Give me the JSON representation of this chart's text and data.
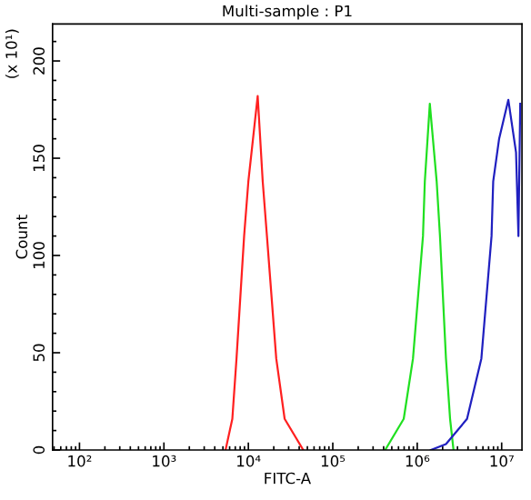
{
  "chart_data": {
    "type": "line",
    "title": "Multi-sample : P1",
    "xlabel": "FITC-A",
    "ylabel": "Count",
    "annotations": [
      "(x 10¹)"
    ],
    "log": "x",
    "grid": false,
    "marker": "none",
    "line_style": "solid",
    "xlim": [
      48,
      17400000
    ],
    "ylim": [
      0,
      219
    ],
    "xticks": [
      {
        "value": 100,
        "label": "10²"
      },
      {
        "value": 1000,
        "label": "10³"
      },
      {
        "value": 10000,
        "label": "10⁴"
      },
      {
        "value": 100000,
        "label": "10⁵"
      },
      {
        "value": 1000000,
        "label": "10⁶"
      },
      {
        "value": 10000000,
        "label": "10⁷"
      }
    ],
    "yticks": [
      0,
      50,
      100,
      150,
      200
    ],
    "series": [
      {
        "color": "#ff2020",
        "x": [
          5370,
          6460,
          7240,
          8910,
          10000,
          12900,
          14800,
          16600,
          21400,
          26900,
          44700
        ],
        "values": [
          0,
          16,
          47,
          110,
          138,
          182,
          138,
          110,
          47,
          16,
          0
        ]
      },
      {
        "color": "#20e020",
        "x": [
          417000,
          692000,
          891000,
          1170000,
          1230000,
          1410000,
          1700000,
          1860000,
          2190000,
          2450000,
          2690000
        ],
        "values": [
          0,
          16,
          47,
          110,
          138,
          178,
          138,
          110,
          47,
          16,
          0
        ]
      },
      {
        "color": "#2020c0",
        "x": [
          1450000,
          2190000,
          3890000,
          5750000,
          7590000,
          7940000,
          9330000,
          12000000,
          14800000,
          15800000,
          16600000
        ],
        "values": [
          0,
          3,
          16,
          47,
          110,
          138,
          160,
          180,
          153,
          110,
          178
        ]
      }
    ]
  }
}
